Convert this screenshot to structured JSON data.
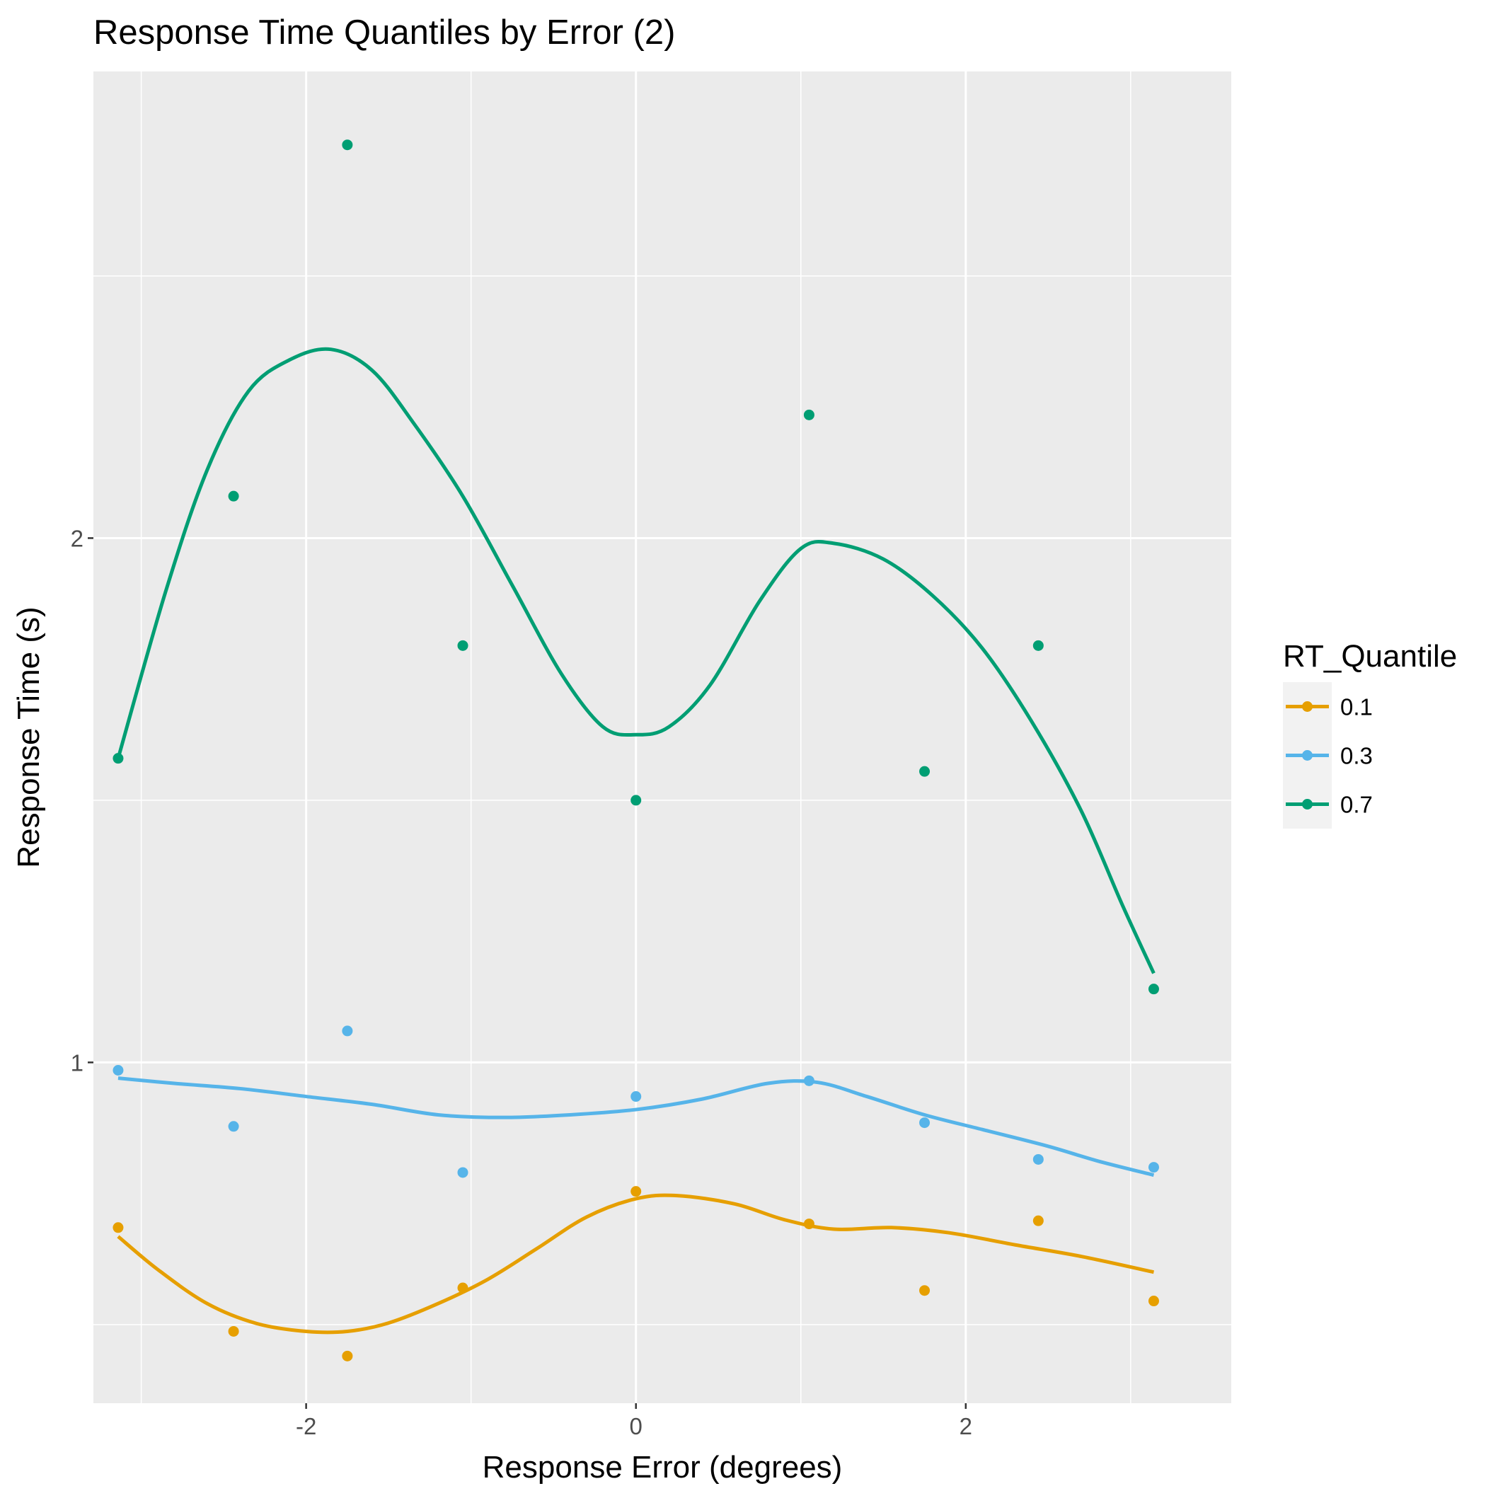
{
  "chart_data": {
    "type": "scatter",
    "title": "Response Time Quantiles by Error (2)",
    "xlabel": "Response Error (degrees)",
    "ylabel": "Response Time (s)",
    "xlim": [
      -3.29,
      3.61
    ],
    "ylim": [
      0.35,
      2.89
    ],
    "x_ticks": [
      -2,
      0,
      2
    ],
    "x_tick_labels": [
      "-2",
      "0",
      "2"
    ],
    "y_ticks": [
      1,
      2
    ],
    "y_tick_labels": [
      "1",
      "2"
    ],
    "x_minor_grid": [
      -3,
      -1,
      1,
      3
    ],
    "y_minor_grid": [
      0.5,
      1.5,
      2.5
    ],
    "grid": true,
    "background": "#ebebeb",
    "legend": {
      "title": "RT_Quantile",
      "position": "right",
      "entries": [
        "0.1",
        "0.3",
        "0.7"
      ]
    },
    "series": [
      {
        "name": "0.1",
        "color": "#e69f00",
        "x": [
          -3.14,
          -2.44,
          -1.75,
          -1.05,
          0.0,
          1.05,
          1.75,
          2.44,
          3.14
        ],
        "y": [
          0.685,
          0.487,
          0.44,
          0.57,
          0.754,
          0.692,
          0.565,
          0.698,
          0.545
        ],
        "smooth": [
          [
            -3.14,
            0.668
          ],
          [
            -2.9,
            0.605
          ],
          [
            -2.6,
            0.54
          ],
          [
            -2.3,
            0.502
          ],
          [
            -2.0,
            0.487
          ],
          [
            -1.75,
            0.487
          ],
          [
            -1.5,
            0.503
          ],
          [
            -1.2,
            0.54
          ],
          [
            -0.9,
            0.586
          ],
          [
            -0.6,
            0.645
          ],
          [
            -0.3,
            0.705
          ],
          [
            0.0,
            0.74
          ],
          [
            0.25,
            0.746
          ],
          [
            0.6,
            0.73
          ],
          [
            0.9,
            0.7
          ],
          [
            1.2,
            0.682
          ],
          [
            1.55,
            0.685
          ],
          [
            1.9,
            0.675
          ],
          [
            2.3,
            0.652
          ],
          [
            2.7,
            0.63
          ],
          [
            3.14,
            0.6
          ]
        ]
      },
      {
        "name": "0.3",
        "color": "#56b4e9",
        "x": [
          -3.14,
          -2.44,
          -1.75,
          -1.05,
          0.0,
          1.05,
          1.75,
          2.44,
          3.14
        ],
        "y": [
          0.985,
          0.878,
          1.06,
          0.79,
          0.935,
          0.965,
          0.885,
          0.815,
          0.8
        ],
        "smooth": [
          [
            -3.14,
            0.97
          ],
          [
            -2.8,
            0.96
          ],
          [
            -2.4,
            0.95
          ],
          [
            -2.0,
            0.935
          ],
          [
            -1.6,
            0.92
          ],
          [
            -1.2,
            0.9
          ],
          [
            -0.8,
            0.895
          ],
          [
            -0.4,
            0.9
          ],
          [
            0.0,
            0.91
          ],
          [
            0.4,
            0.93
          ],
          [
            0.8,
            0.96
          ],
          [
            1.1,
            0.962
          ],
          [
            1.4,
            0.935
          ],
          [
            1.75,
            0.9
          ],
          [
            2.1,
            0.872
          ],
          [
            2.5,
            0.84
          ],
          [
            2.8,
            0.812
          ],
          [
            3.14,
            0.785
          ]
        ]
      },
      {
        "name": "0.7",
        "color": "#009e73",
        "x": [
          -3.14,
          -2.44,
          -1.75,
          -1.05,
          0.0,
          1.05,
          1.75,
          2.44,
          3.14
        ],
        "y": [
          1.58,
          2.08,
          2.75,
          1.795,
          1.5,
          2.235,
          1.555,
          1.795,
          1.14
        ],
        "smooth": [
          [
            -3.14,
            1.58
          ],
          [
            -2.85,
            1.9
          ],
          [
            -2.6,
            2.13
          ],
          [
            -2.35,
            2.28
          ],
          [
            -2.1,
            2.34
          ],
          [
            -1.85,
            2.36
          ],
          [
            -1.6,
            2.32
          ],
          [
            -1.35,
            2.22
          ],
          [
            -1.05,
            2.08
          ],
          [
            -0.75,
            1.91
          ],
          [
            -0.45,
            1.74
          ],
          [
            -0.2,
            1.64
          ],
          [
            0.0,
            1.625
          ],
          [
            0.2,
            1.64
          ],
          [
            0.45,
            1.72
          ],
          [
            0.75,
            1.88
          ],
          [
            1.0,
            1.98
          ],
          [
            1.2,
            1.99
          ],
          [
            1.5,
            1.96
          ],
          [
            1.8,
            1.89
          ],
          [
            2.1,
            1.79
          ],
          [
            2.4,
            1.65
          ],
          [
            2.7,
            1.48
          ],
          [
            2.95,
            1.3
          ],
          [
            3.14,
            1.17
          ]
        ]
      }
    ]
  }
}
